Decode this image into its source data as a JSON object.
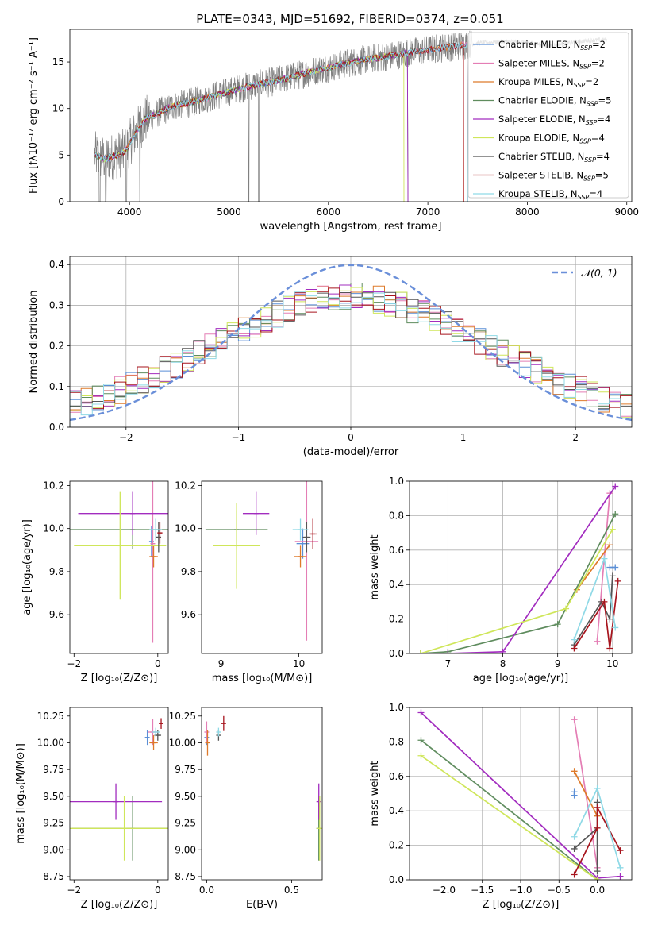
{
  "figure_title": "PLATE=0343, MJD=51692, FIBERID=0374, z=0.051",
  "colors": {
    "Chabrier MILES": "#5b8fd6",
    "Salpeter MILES": "#e47eb5",
    "Kroupa MILES": "#de7a2a",
    "Chabrier ELODIE": "#5f8c5e",
    "Salpeter ELODIE": "#a22cbf",
    "Kroupa ELODIE": "#cfe65a",
    "Chabrier STELIB": "#555555",
    "Salpeter STELIB": "#a7141d",
    "Kroupa STELIB": "#8fd9e6",
    "data": "#808080",
    "normal": "#6a8fd9"
  },
  "chart_data": [
    {
      "id": "spectrum",
      "type": "line",
      "xlabel": "wavelength [Angstrom, rest frame]",
      "ylabel": "Flux [fλ10⁻¹⁷ erg cm⁻² s⁻¹ A⁻¹]",
      "xlim": [
        3400,
        9050
      ],
      "ylim": [
        0,
        18.5
      ],
      "xticks": [
        4000,
        5000,
        6000,
        7000,
        8000,
        9000
      ],
      "yticks": [
        0,
        5,
        10,
        15
      ],
      "legend_position": "top-right",
      "data_envelope": {
        "x": [
          3650,
          3750,
          3850,
          3950,
          4050,
          4150,
          4300,
          4450,
          4600,
          4800,
          5000,
          5200,
          5400,
          5600,
          5800,
          6000,
          6200,
          6400,
          6600,
          6800,
          7000,
          7200,
          7400,
          7600,
          7800,
          8000,
          8200,
          8400,
          8600,
          8800
        ],
        "y": [
          5.0,
          4.6,
          4.9,
          5.3,
          7.2,
          8.8,
          9.6,
          10.3,
          10.6,
          11.2,
          11.8,
          12.4,
          12.8,
          13.3,
          13.9,
          14.4,
          14.9,
          15.3,
          15.6,
          16.0,
          16.3,
          16.6,
          16.9,
          17.1,
          17.2,
          17.1,
          16.7,
          17.0,
          17.3,
          17.4
        ]
      },
      "series": [
        {
          "name": "Chabrier MILES",
          "nssp": "2",
          "xmax": 7400
        },
        {
          "name": "Salpeter MILES",
          "nssp": "2",
          "xmax": 7400
        },
        {
          "name": "Kroupa MILES",
          "nssp": "2",
          "xmax": 7360
        },
        {
          "name": "Chabrier ELODIE",
          "nssp": "5",
          "xmax": 6800
        },
        {
          "name": "Salpeter ELODIE",
          "nssp": "4",
          "xmax": 6800
        },
        {
          "name": "Kroupa ELODIE",
          "nssp": "4",
          "xmax": 6760
        },
        {
          "name": "Chabrier STELIB",
          "nssp": "4",
          "xmax": 7400
        },
        {
          "name": "Salpeter STELIB",
          "nssp": "5",
          "xmax": 7360
        },
        {
          "name": "Kroupa STELIB",
          "nssp": "4",
          "xmax": 7400
        }
      ]
    },
    {
      "id": "residuals",
      "type": "histogram",
      "xlabel": "(data-model)/error",
      "ylabel": "Normed distribution",
      "xlim": [
        -2.5,
        2.5
      ],
      "ylim": [
        0,
        0.42
      ],
      "xticks": [
        -2,
        -1,
        0,
        1,
        2
      ],
      "yticks": [
        0.0,
        0.1,
        0.2,
        0.3,
        0.4
      ],
      "grid": true,
      "legend_position": "top-right",
      "reference_label": "𝒩(0, 1)",
      "bin_width": 0.1
    },
    {
      "id": "age-vs-Z",
      "type": "errorbar",
      "xlabel": "Z [log₁₀(Z/Z⊙)]",
      "ylabel": "age  [log₁₀(age/yr)]",
      "xlim": [
        -2.1,
        0.25
      ],
      "ylim": [
        9.42,
        10.22
      ],
      "xticks": [
        -2,
        0
      ],
      "yticks": [
        9.6,
        9.8,
        10.0,
        10.2
      ],
      "points": [
        {
          "s": "Chabrier MILES",
          "x": -0.15,
          "xerr": 0.05,
          "y": 9.94,
          "yerr": 0.07
        },
        {
          "s": "Salpeter MILES",
          "x": -0.12,
          "xerr": 0.05,
          "y": 9.93,
          "yerr": 0.46
        },
        {
          "s": "Kroupa MILES",
          "x": -0.1,
          "xerr": 0.1,
          "y": 9.87,
          "yerr": 0.05
        },
        {
          "s": "Chabrier ELODIE",
          "x": -0.6,
          "xerr": 1.5,
          "y": 9.995,
          "yerr": 0.09
        },
        {
          "s": "Salpeter ELODIE",
          "x": -0.6,
          "xerr": 1.3,
          "y": 10.07,
          "yerr": 0.1
        },
        {
          "s": "Kroupa ELODIE",
          "x": -0.9,
          "xerr": 1.1,
          "y": 9.92,
          "yerr": 0.25
        },
        {
          "s": "Chabrier STELIB",
          "x": 0.02,
          "xerr": 0.06,
          "y": 9.96,
          "yerr": 0.07
        },
        {
          "s": "Salpeter STELIB",
          "x": 0.05,
          "xerr": 0.06,
          "y": 9.98,
          "yerr": 0.05
        },
        {
          "s": "Kroupa STELIB",
          "x": -0.05,
          "xerr": 0.15,
          "y": 9.995,
          "yerr": 0.05
        }
      ]
    },
    {
      "id": "age-vs-mass",
      "type": "errorbar",
      "xlabel": "mass [log₁₀(M/M⊙)]",
      "ylabel": "",
      "xlim": [
        8.75,
        10.3
      ],
      "ylim": [
        9.42,
        10.22
      ],
      "xticks": [
        9,
        10
      ],
      "yticks": [
        9.6,
        9.8,
        10.0,
        10.2
      ],
      "points": [
        {
          "s": "Chabrier MILES",
          "x": 10.05,
          "xerr": 0.08,
          "y": 9.93,
          "yerr": 0.07
        },
        {
          "s": "Salpeter MILES",
          "x": 10.1,
          "xerr": 0.15,
          "y": 9.94,
          "yerr": 0.46
        },
        {
          "s": "Kroupa MILES",
          "x": 10.02,
          "xerr": 0.08,
          "y": 9.87,
          "yerr": 0.05
        },
        {
          "s": "Chabrier ELODIE",
          "x": 9.2,
          "xerr": 0.4,
          "y": 9.995,
          "yerr": 0.09
        },
        {
          "s": "Salpeter ELODIE",
          "x": 9.45,
          "xerr": 0.17,
          "y": 10.07,
          "yerr": 0.1
        },
        {
          "s": "Kroupa ELODIE",
          "x": 9.2,
          "xerr": 0.3,
          "y": 9.92,
          "yerr": 0.2
        },
        {
          "s": "Chabrier STELIB",
          "x": 10.1,
          "xerr": 0.05,
          "y": 9.96,
          "yerr": 0.07
        },
        {
          "s": "Salpeter STELIB",
          "x": 10.18,
          "xerr": 0.05,
          "y": 9.975,
          "yerr": 0.07
        },
        {
          "s": "Kroupa STELIB",
          "x": 10.02,
          "xerr": 0.1,
          "y": 9.995,
          "yerr": 0.05
        }
      ]
    },
    {
      "id": "weight-vs-age",
      "type": "line",
      "xlabel": "age  [log₁₀(age/yr)]",
      "ylabel": "mass weight",
      "xlim": [
        6.3,
        10.35
      ],
      "ylim": [
        0,
        1.0
      ],
      "xticks": [
        7,
        8,
        9,
        10
      ],
      "yticks": [
        0.0,
        0.2,
        0.4,
        0.6,
        0.8,
        1.0
      ],
      "grid": true,
      "series": [
        {
          "s": "Chabrier MILES",
          "x": [
            9.95,
            10.05
          ],
          "y": [
            0.5,
            0.5
          ]
        },
        {
          "s": "Salpeter MILES",
          "x": [
            9.72,
            9.95
          ],
          "y": [
            0.07,
            0.93
          ]
        },
        {
          "s": "Kroupa MILES",
          "x": [
            9.35,
            9.95
          ],
          "y": [
            0.37,
            0.63
          ]
        },
        {
          "s": "Chabrier ELODIE",
          "x": [
            6.5,
            7.0,
            9.0,
            10.05
          ],
          "y": [
            0.0,
            0.01,
            0.17,
            0.81
          ]
        },
        {
          "s": "Salpeter ELODIE",
          "x": [
            7.0,
            8.0,
            10.05
          ],
          "y": [
            0.0,
            0.01,
            0.97
          ]
        },
        {
          "s": "Kroupa ELODIE",
          "x": [
            6.5,
            9.15,
            10.0
          ],
          "y": [
            0.0,
            0.26,
            0.72
          ]
        },
        {
          "s": "Chabrier STELIB",
          "x": [
            9.3,
            9.8,
            9.95,
            10.0
          ],
          "y": [
            0.05,
            0.3,
            0.2,
            0.45
          ]
        },
        {
          "s": "Salpeter STELIB",
          "x": [
            9.3,
            9.85,
            9.95,
            10.1
          ],
          "y": [
            0.03,
            0.3,
            0.03,
            0.42
          ]
        },
        {
          "s": "Kroupa STELIB",
          "x": [
            9.3,
            9.85,
            10.05
          ],
          "y": [
            0.08,
            0.55,
            0.15
          ]
        }
      ]
    },
    {
      "id": "mass-vs-Z",
      "type": "errorbar",
      "xlabel": "Z [log₁₀(Z/Z⊙)]",
      "ylabel": "mass [log₁₀(M/M⊙)]",
      "xlim": [
        -2.1,
        0.25
      ],
      "ylim": [
        8.72,
        10.33
      ],
      "xticks": [
        -2,
        0
      ],
      "yticks": [
        8.75,
        9.0,
        9.25,
        9.5,
        9.75,
        10.0,
        10.25
      ],
      "points": [
        {
          "s": "Chabrier MILES",
          "x": -0.25,
          "xerr": 0.05,
          "y": 10.05,
          "yerr": 0.07
        },
        {
          "s": "Salpeter MILES",
          "x": -0.12,
          "xerr": 0.12,
          "y": 10.1,
          "yerr": 0.12
        },
        {
          "s": "Kroupa MILES",
          "x": -0.1,
          "xerr": 0.1,
          "y": 10.0,
          "yerr": 0.07
        },
        {
          "s": "Chabrier ELODIE",
          "x": -0.6,
          "xerr": 1.45,
          "y": 9.2,
          "yerr": 0.3
        },
        {
          "s": "Salpeter ELODIE",
          "x": -1.0,
          "xerr": 1.1,
          "y": 9.45,
          "yerr": 0.17
        },
        {
          "s": "Kroupa ELODIE",
          "x": -0.8,
          "xerr": 1.3,
          "y": 9.2,
          "yerr": 0.3
        },
        {
          "s": "Chabrier STELIB",
          "x": 0.0,
          "xerr": 0.08,
          "y": 10.07,
          "yerr": 0.05
        },
        {
          "s": "Salpeter STELIB",
          "x": 0.08,
          "xerr": 0.04,
          "y": 10.18,
          "yerr": 0.05
        },
        {
          "s": "Kroupa STELIB",
          "x": -0.05,
          "xerr": 0.1,
          "y": 10.1,
          "yerr": 0.04
        }
      ]
    },
    {
      "id": "mass-vs-ebv",
      "type": "errorbar",
      "xlabel": "E(B-V)",
      "ylabel": "",
      "xlim": [
        -0.03,
        0.68
      ],
      "ylim": [
        8.72,
        10.33
      ],
      "xticks": [
        0.0,
        0.5
      ],
      "yticks": [
        8.75,
        9.0,
        9.25,
        9.5,
        9.75,
        10.0,
        10.25
      ],
      "points": [
        {
          "s": "Chabrier MILES",
          "x": 0.0,
          "xerr": 0.0,
          "y": 10.05,
          "yerr": 0.07
        },
        {
          "s": "Salpeter MILES",
          "x": 0.0,
          "xerr": 0.0,
          "y": 10.1,
          "yerr": 0.1
        },
        {
          "s": "Kroupa MILES",
          "x": 0.005,
          "xerr": 0.0,
          "y": 10.0,
          "yerr": 0.12
        },
        {
          "s": "Chabrier ELODIE",
          "x": 0.66,
          "xerr": 0.0,
          "y": 9.2,
          "yerr": 0.3
        },
        {
          "s": "Salpeter ELODIE",
          "x": 0.66,
          "xerr": 0.0,
          "y": 9.45,
          "yerr": 0.17
        },
        {
          "s": "Kroupa ELODIE",
          "x": 0.665,
          "xerr": 0.0,
          "y": 9.2,
          "yerr": 0.3
        },
        {
          "s": "Chabrier STELIB",
          "x": 0.07,
          "xerr": 0.0,
          "y": 10.07,
          "yerr": 0.05
        },
        {
          "s": "Salpeter STELIB",
          "x": 0.1,
          "xerr": 0.0,
          "y": 10.18,
          "yerr": 0.07
        },
        {
          "s": "Kroupa STELIB",
          "x": 0.07,
          "xerr": 0.0,
          "y": 10.1,
          "yerr": 0.04
        }
      ]
    },
    {
      "id": "weight-vs-Z",
      "type": "line",
      "xlabel": "Z [log₁₀(Z/Z⊙)]",
      "ylabel": "mass weight",
      "xlim": [
        -2.45,
        0.45
      ],
      "ylim": [
        0,
        1.0
      ],
      "xticks": [
        -2.0,
        -1.5,
        -1.0,
        -0.5,
        0.0
      ],
      "yticks": [
        0.0,
        0.2,
        0.4,
        0.6,
        0.8,
        1.0
      ],
      "grid": true,
      "series": [
        {
          "s": "Chabrier MILES",
          "x": [
            -0.3,
            -0.3
          ],
          "y": [
            0.49,
            0.51
          ]
        },
        {
          "s": "Salpeter MILES",
          "x": [
            -0.3,
            0.0
          ],
          "y": [
            0.93,
            0.07
          ]
        },
        {
          "s": "Kroupa MILES",
          "x": [
            -0.3,
            0.0
          ],
          "y": [
            0.63,
            0.37
          ]
        },
        {
          "s": "Chabrier ELODIE",
          "x": [
            -2.3,
            0.0
          ],
          "y": [
            0.81,
            0.0
          ]
        },
        {
          "s": "Salpeter ELODIE",
          "x": [
            -2.3,
            0.0,
            0.3
          ],
          "y": [
            0.97,
            0.01,
            0.02
          ]
        },
        {
          "s": "Kroupa ELODIE",
          "x": [
            -2.3,
            0.0
          ],
          "y": [
            0.72,
            0.0
          ]
        },
        {
          "s": "Chabrier STELIB",
          "x": [
            -0.3,
            0.0,
            0.0,
            0.0
          ],
          "y": [
            0.18,
            0.3,
            0.45,
            0.05
          ]
        },
        {
          "s": "Salpeter STELIB",
          "x": [
            -0.3,
            0.0,
            0.0,
            0.3
          ],
          "y": [
            0.03,
            0.3,
            0.42,
            0.17
          ]
        },
        {
          "s": "Kroupa STELIB",
          "x": [
            -0.3,
            0.0,
            0.3
          ],
          "y": [
            0.25,
            0.53,
            0.07
          ]
        }
      ]
    }
  ]
}
